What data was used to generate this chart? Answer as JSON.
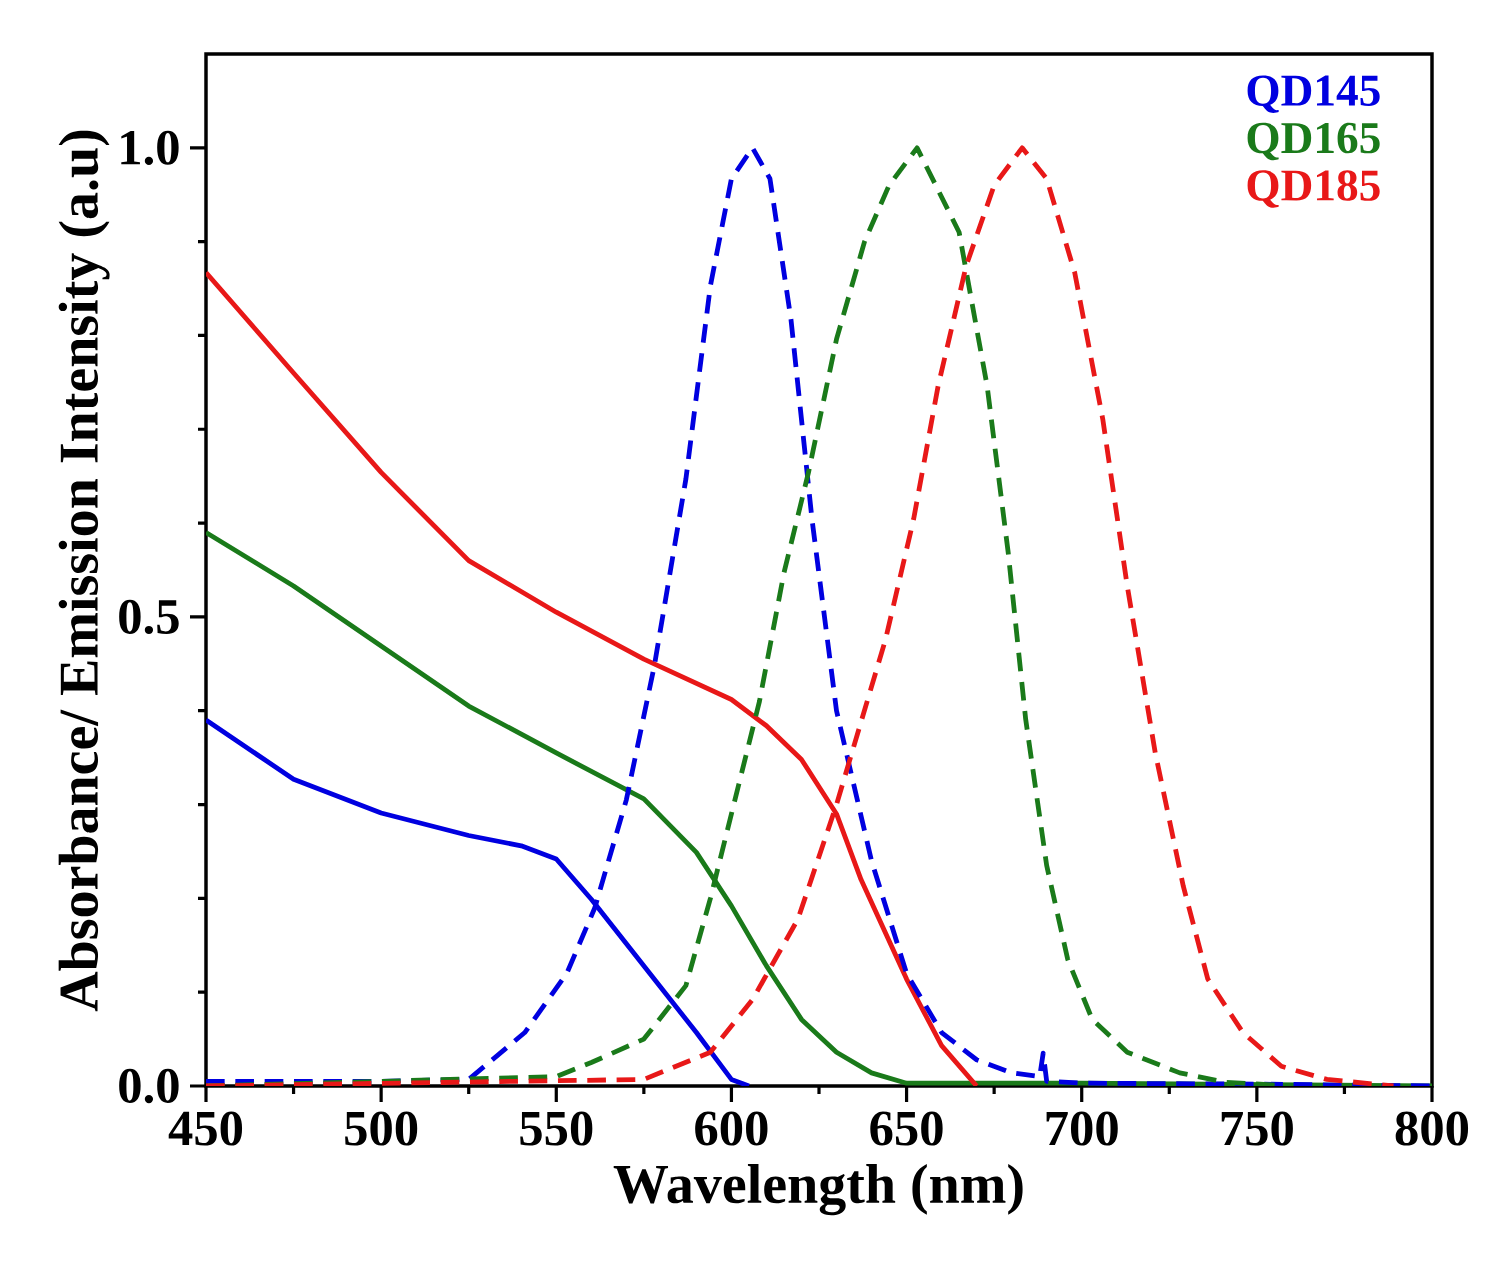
{
  "chart_data": {
    "type": "line",
    "xlabel": "Wavelength (nm)",
    "ylabel": "Absorbance/ Emission Intensity (a.u)",
    "xlim": [
      450,
      800
    ],
    "xticks": [
      450,
      500,
      550,
      600,
      650,
      700,
      750,
      800
    ],
    "ylim": [
      0,
      1.1
    ],
    "yticks": [
      {
        "value": 0,
        "label": "0.0"
      },
      {
        "value": 0.5,
        "label": "0.5"
      },
      {
        "value": 1,
        "label": "1.0"
      }
    ],
    "legend": "top right",
    "grid": false,
    "series": [
      {
        "color": "#0000e0",
        "line_style": "solid",
        "x": [
          450,
          475,
          500,
          525,
          540,
          550,
          560,
          575,
          590,
          600,
          605
        ],
        "values": [
          0.39,
          0.327,
          0.291,
          0.267,
          0.256,
          0.242,
          0.199,
          0.128,
          0.057,
          0.007,
          0
        ]
      },
      {
        "color": "#1a7a1a",
        "line_style": "solid",
        "x": [
          450,
          475,
          500,
          525,
          550,
          575,
          590,
          600,
          610,
          620,
          630,
          640,
          650,
          700,
          800
        ],
        "values": [
          0.59,
          0.533,
          0.469,
          0.405,
          0.355,
          0.306,
          0.249,
          0.192,
          0.128,
          0.071,
          0.036,
          0.014,
          0.003,
          0.003,
          0
        ]
      },
      {
        "color": "#e81818",
        "line_style": "solid",
        "x": [
          450,
          475,
          500,
          525,
          550,
          575,
          600,
          610,
          620,
          630,
          637,
          650,
          660,
          670
        ],
        "values": [
          0.867,
          0.76,
          0.654,
          0.56,
          0.505,
          0.455,
          0.412,
          0.384,
          0.348,
          0.29,
          0.22,
          0.114,
          0.043,
          0
        ]
      },
      {
        "name": "QD145",
        "color": "#0000e0",
        "line_style": "dashed",
        "x": [
          450,
          500,
          525,
          541,
          553,
          561,
          570,
          578,
          587,
          594,
          600,
          606,
          611,
          617,
          623,
          630,
          640,
          650,
          660,
          670,
          680,
          688,
          689,
          690,
          700,
          750,
          800
        ],
        "values": [
          0.005,
          0.005,
          0.007,
          0.057,
          0.12,
          0.19,
          0.305,
          0.448,
          0.647,
          0.853,
          0.967,
          1.0,
          0.967,
          0.817,
          0.604,
          0.4,
          0.24,
          0.12,
          0.057,
          0.028,
          0.014,
          0.01,
          0.035,
          0.005,
          0.003,
          0.002,
          0
        ]
      },
      {
        "name": "QD165",
        "color": "#1a7a1a",
        "line_style": "dashed",
        "x": [
          450,
          550,
          560,
          575,
          587,
          594,
          602,
          608,
          615,
          622,
          630,
          638,
          645,
          653,
          665,
          673,
          679,
          684,
          690,
          696,
          703,
          713,
          728,
          741,
          760
        ],
        "values": [
          0,
          0.01,
          0.025,
          0.05,
          0.107,
          0.2,
          0.32,
          0.41,
          0.547,
          0.654,
          0.796,
          0.9,
          0.96,
          1.0,
          0.91,
          0.746,
          0.569,
          0.391,
          0.235,
          0.135,
          0.071,
          0.036,
          0.014,
          0.004,
          0
        ]
      },
      {
        "name": "QD185",
        "color": "#e81818",
        "line_style": "dashed",
        "x": [
          450,
          575,
          594,
          606,
          619,
          630,
          644,
          652,
          659,
          667,
          675,
          683,
          690,
          698,
          706,
          713,
          721,
          729,
          736,
          746,
          757,
          770,
          789
        ],
        "values": [
          0,
          0.007,
          0.036,
          0.092,
          0.178,
          0.3,
          0.476,
          0.604,
          0.746,
          0.874,
          0.96,
          1.0,
          0.967,
          0.867,
          0.711,
          0.533,
          0.355,
          0.213,
          0.114,
          0.057,
          0.021,
          0.007,
          0
        ]
      }
    ]
  }
}
